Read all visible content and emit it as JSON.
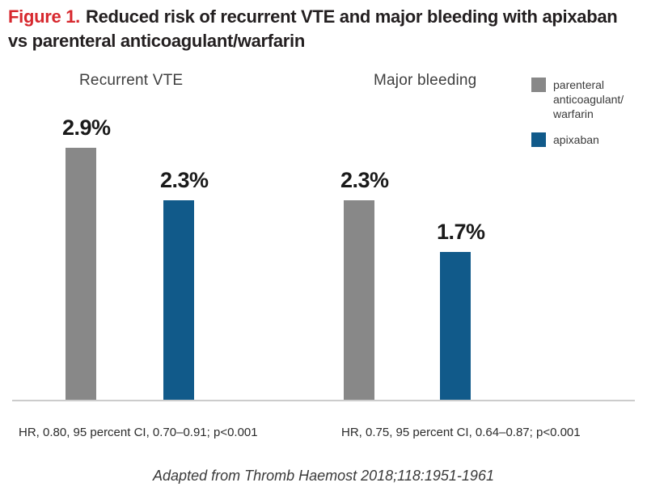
{
  "title": {
    "prefix": "Figure 1.",
    "line1": "Reduced risk of recurrent VTE and major bleeding with apixaban",
    "line2": "vs parenteral anticoagulant/warfarin"
  },
  "colors": {
    "figure_label_red": "#d7282e",
    "title_text": "#231f20",
    "parenteral_gray": "#888888",
    "apixaban_blue": "#115a8a",
    "baseline_gray": "#cccccc"
  },
  "chart_data": {
    "type": "bar",
    "unit": "percent",
    "ylim": [
      0,
      3.2
    ],
    "grid": false,
    "legend_position": "top-right",
    "categories": [
      "Recurrent VTE",
      "Major bleeding"
    ],
    "series": [
      {
        "name": "parenteral anticoagulant/warfarin",
        "color": "#888888",
        "values": [
          2.9,
          2.3
        ]
      },
      {
        "name": "apixaban",
        "color": "#115a8a",
        "values": [
          2.3,
          1.7
        ]
      }
    ],
    "bar_labels": [
      [
        "2.9%",
        "2.3%"
      ],
      [
        "2.3%",
        "1.7%"
      ]
    ],
    "group_stats": [
      "HR, 0.80, 95 percent CI, 0.70–0.91; p<0.001",
      "HR, 0.75, 95 percent CI, 0.64–0.87; p<0.001"
    ]
  },
  "legend": [
    {
      "name": "parenteral anticoagulant/warfarin",
      "color": "#888888",
      "lines": [
        "parenteral",
        "anticoagulant/",
        "warfarin"
      ]
    },
    {
      "name": "apixaban",
      "color": "#115a8a",
      "lines": [
        "apixaban"
      ]
    }
  ],
  "footer": "Adapted from Thromb Haemost 2018;118:1951-1961"
}
